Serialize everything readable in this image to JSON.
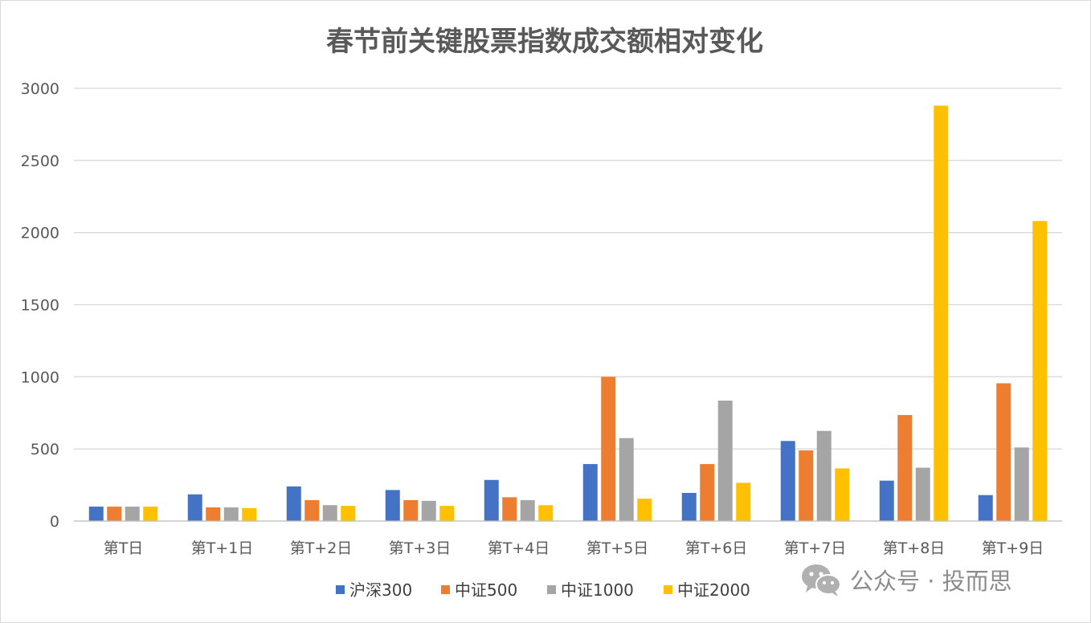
{
  "watermark": {
    "text": "公众号 · 投而思",
    "icon": "wechat-icon"
  },
  "chart_data": {
    "type": "bar",
    "title": "春节前关键股票指数成交额相对变化",
    "xlabel": "",
    "ylabel": "",
    "ylim": [
      0,
      3000
    ],
    "yticks": [
      0,
      500,
      1000,
      1500,
      2000,
      2500,
      3000
    ],
    "grid": true,
    "legend_position": "bottom",
    "categories": [
      "第T日",
      "第T+1日",
      "第T+2日",
      "第T+3日",
      "第T+4日",
      "第T+5日",
      "第T+6日",
      "第T+7日",
      "第T+8日",
      "第T+9日"
    ],
    "series": [
      {
        "name": "沪深300",
        "color": "#4472C4",
        "values": [
          100,
          185,
          240,
          215,
          285,
          395,
          195,
          555,
          280,
          180
        ]
      },
      {
        "name": "中证500",
        "color": "#ED7D31",
        "values": [
          100,
          95,
          145,
          145,
          165,
          1000,
          395,
          490,
          735,
          955
        ]
      },
      {
        "name": "中证1000",
        "color": "#A5A5A5",
        "values": [
          100,
          95,
          110,
          140,
          145,
          575,
          835,
          625,
          370,
          510
        ]
      },
      {
        "name": "中证2000",
        "color": "#FFC000",
        "values": [
          100,
          90,
          105,
          105,
          110,
          155,
          265,
          365,
          2880,
          2080
        ]
      }
    ]
  }
}
